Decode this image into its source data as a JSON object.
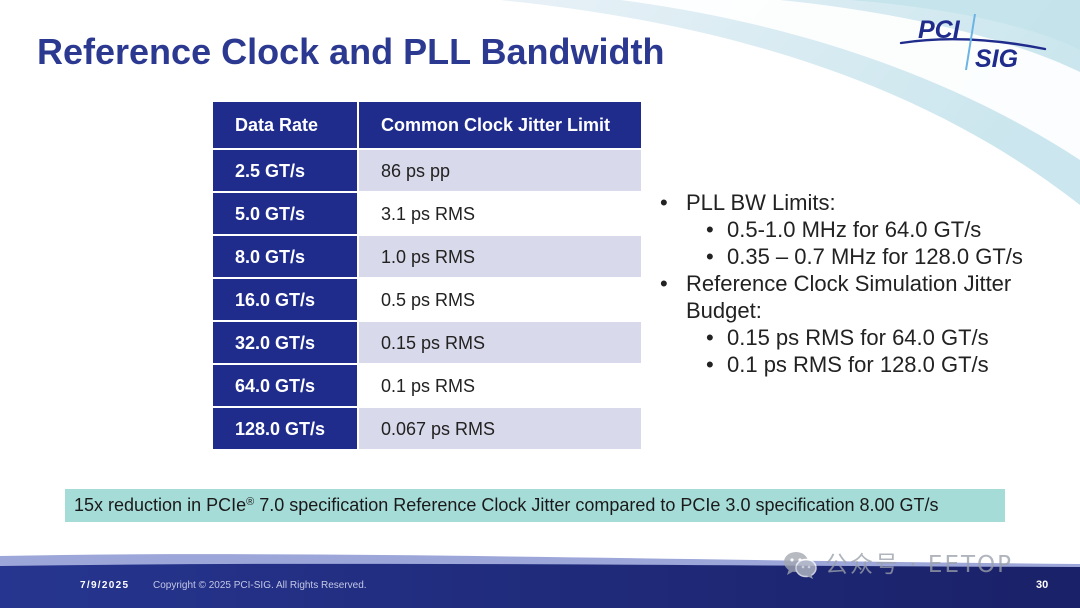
{
  "colors": {
    "navy": "#1f2c8c",
    "title": "#2b3990",
    "lavender": "#d8d9ea",
    "banner": "#a6dcd8",
    "body_text": "#222222",
    "footer": "#1b2370"
  },
  "slide": {
    "title": "Reference Clock and PLL Bandwidth"
  },
  "logo": {
    "top": "PCI",
    "bottom": "SIG"
  },
  "table": {
    "headers": [
      "Data Rate",
      "Common Clock Jitter Limit"
    ],
    "rows": [
      {
        "rate": "2.5 GT/s",
        "limit": "86 ps pp"
      },
      {
        "rate": "5.0 GT/s",
        "limit": "3.1 ps RMS"
      },
      {
        "rate": "8.0 GT/s",
        "limit": "1.0 ps RMS"
      },
      {
        "rate": "16.0 GT/s",
        "limit": "0.5 ps RMS"
      },
      {
        "rate": "32.0 GT/s",
        "limit": "0.15 ps RMS"
      },
      {
        "rate": "64.0 GT/s",
        "limit": "0.1 ps RMS"
      },
      {
        "rate": "128.0 GT/s",
        "limit": "0.067 ps RMS"
      }
    ]
  },
  "bullets": [
    {
      "text": "PLL BW Limits:",
      "sub": [
        "0.5-1.0 MHz for 64.0 GT/s",
        "0.35 – 0.7 MHz for 128.0 GT/s"
      ]
    },
    {
      "text": "Reference Clock Simulation Jitter Budget:",
      "sub": [
        "0.15 ps RMS for 64.0 GT/s",
        "0.1 ps RMS for 128.0 GT/s"
      ]
    }
  ],
  "banner": {
    "text_before": "15x reduction in PCIe",
    "registered_mark": "®",
    "text_after": " 7.0 specification Reference Clock Jitter compared to PCIe 3.0 specification 8.00 GT/s"
  },
  "footer": {
    "date": "7/9/2025",
    "copyright": "Copyright © 2025 PCI-SIG. All Rights Reserved.",
    "page_number": "30"
  },
  "watermark": {
    "icon": "wechat-icon",
    "text": "公众号 · EETOP"
  }
}
